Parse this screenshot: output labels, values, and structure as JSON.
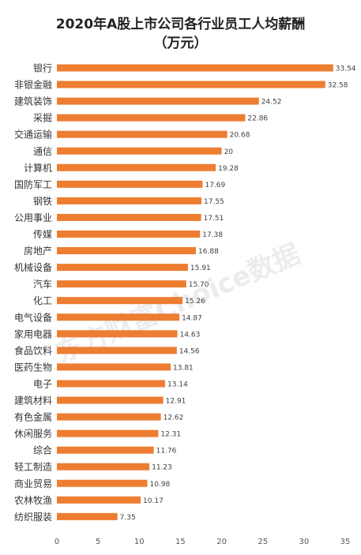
{
  "chart_data": {
    "type": "bar",
    "orientation": "horizontal",
    "title": "2020年A股上市公司各行业员工人均薪酬",
    "subtitle": "（万元）",
    "categories": [
      "银行",
      "非银金融",
      "建筑装饰",
      "采掘",
      "交通运输",
      "通信",
      "计算机",
      "国防军工",
      "钢铁",
      "公用事业",
      "传媒",
      "房地产",
      "机械设备",
      "汽车",
      "化工",
      "电气设备",
      "家用电器",
      "食品饮料",
      "医药生物",
      "电子",
      "建筑材料",
      "有色金属",
      "休闲服务",
      "综合",
      "轻工制造",
      "商业贸易",
      "农林牧渔",
      "纺织服装"
    ],
    "values": [
      33.54,
      32.58,
      24.52,
      22.86,
      20.68,
      20,
      19.28,
      17.69,
      17.55,
      17.51,
      17.38,
      16.88,
      15.91,
      15.7,
      15.26,
      14.87,
      14.63,
      14.56,
      13.81,
      13.14,
      12.91,
      12.62,
      12.31,
      11.76,
      11.23,
      10.98,
      10.17,
      7.35
    ],
    "value_labels": [
      "33.54",
      "32.58",
      "24.52",
      "22.86",
      "20.68",
      "20",
      "19.28",
      "17.69",
      "17.55",
      "17.51",
      "17.38",
      "16.88",
      "15.91",
      "15.70",
      "15.26",
      "14.87",
      "14.63",
      "14.56",
      "13.81",
      "13.14",
      "12.91",
      "12.62",
      "12.31",
      "11.76",
      "11.23",
      "10.98",
      "10.17",
      "7.35"
    ],
    "xlim": [
      0,
      35
    ],
    "xticks": [
      "0",
      "5",
      "10",
      "15",
      "20",
      "25",
      "30",
      "35"
    ],
    "grid": false,
    "legend": "none",
    "bar_color": "#ED7D31",
    "watermark": "东方财富Choice数据"
  }
}
